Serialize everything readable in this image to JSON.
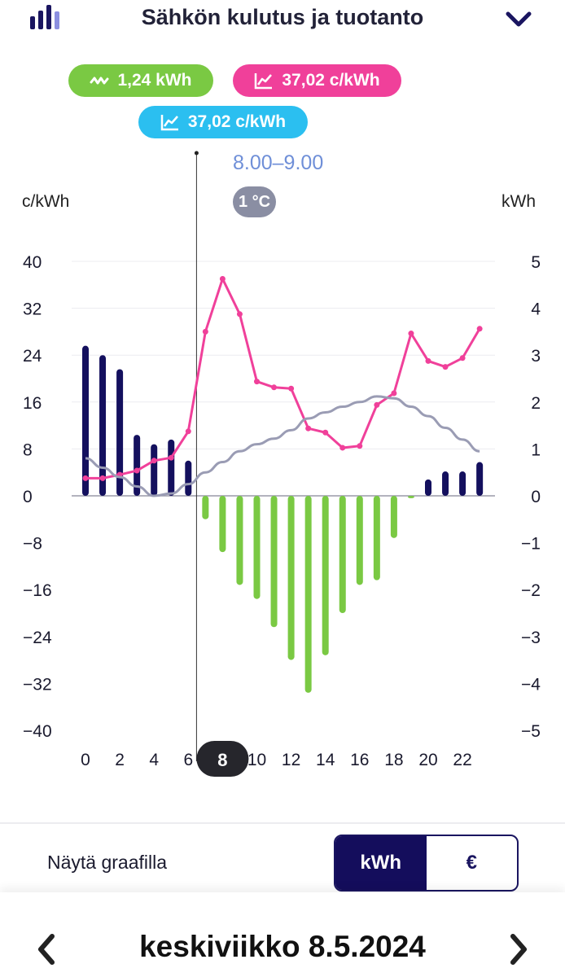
{
  "header": {
    "title": "Sähkön kulutus ja tuotanto",
    "app_icon": "bar-chart-icon",
    "menu_icon": "chevron-down-icon"
  },
  "pills": {
    "consumption": "1,24 kWh",
    "price_pink": "37,02 c/kWh",
    "price_blue": "37,02 c/kWh"
  },
  "selection": {
    "time": "8.00–9.00",
    "temperature": "1 °C",
    "hour": "8"
  },
  "units": {
    "left": "c/kWh",
    "right": "kWh"
  },
  "chart_data": {
    "type": "bar",
    "x": [
      0,
      1,
      2,
      3,
      4,
      5,
      6,
      7,
      8,
      9,
      10,
      11,
      12,
      13,
      14,
      15,
      16,
      17,
      18,
      19,
      20,
      21,
      22,
      23
    ],
    "x_tick_labels": [
      "0",
      "2",
      "4",
      "6",
      "8",
      "10",
      "12",
      "14",
      "16",
      "18",
      "20",
      "22"
    ],
    "y_left_ticks": [
      "40",
      "32",
      "24",
      "16",
      "8",
      "0",
      "−8",
      "−16",
      "−24",
      "−32",
      "−40"
    ],
    "y_right_ticks": [
      "5",
      "4",
      "3",
      "2",
      "1",
      "0",
      "−1",
      "−2",
      "−3",
      "−4",
      "−5"
    ],
    "ylim_left": [
      -40,
      40
    ],
    "ylim_right": [
      -5,
      5
    ],
    "series": [
      {
        "name": "consumption_kwh",
        "axis": "right",
        "type": "bar",
        "color": "#14105e",
        "values": [
          3.2,
          3.0,
          2.7,
          1.3,
          1.1,
          1.2,
          0.75,
          0,
          0,
          0,
          0,
          0,
          0,
          0,
          0,
          0,
          0,
          0,
          0,
          0,
          0.35,
          0.52,
          0.52,
          0.72
        ]
      },
      {
        "name": "production_kwh",
        "axis": "right",
        "type": "bar",
        "color": "#7ac943",
        "values": [
          0,
          0,
          0,
          0,
          0,
          0,
          0,
          -0.5,
          -1.2,
          -1.9,
          -2.2,
          -2.8,
          -3.5,
          -4.2,
          -3.4,
          -2.5,
          -1.9,
          -1.8,
          -0.9,
          -0.05,
          0,
          0,
          0,
          0
        ]
      },
      {
        "name": "price_cents",
        "axis": "left",
        "type": "line",
        "color": "#f0409a",
        "values": [
          3.0,
          3.0,
          3.6,
          4.3,
          6.0,
          6.5,
          11.0,
          28.0,
          37.02,
          31.0,
          19.5,
          18.5,
          18.3,
          11.5,
          10.8,
          8.2,
          8.5,
          15.5,
          17.5,
          27.7,
          23.0,
          22.0,
          23.5,
          28.5
        ]
      },
      {
        "name": "temperature_trend",
        "axis": "right",
        "type": "line",
        "color": "#9a9cb4",
        "values": [
          0.8,
          0.6,
          0.4,
          0.2,
          0.0,
          0.05,
          0.25,
          0.5,
          0.72,
          0.95,
          1.1,
          1.22,
          1.4,
          1.65,
          1.78,
          1.9,
          2.0,
          2.12,
          2.08,
          1.9,
          1.7,
          1.45,
          1.2,
          0.95
        ]
      }
    ]
  },
  "controls": {
    "show_label": "Näytä graafilla",
    "kwh": "kWh",
    "eur": "€"
  },
  "footer": {
    "date": "keskiviikko 8.5.2024"
  }
}
